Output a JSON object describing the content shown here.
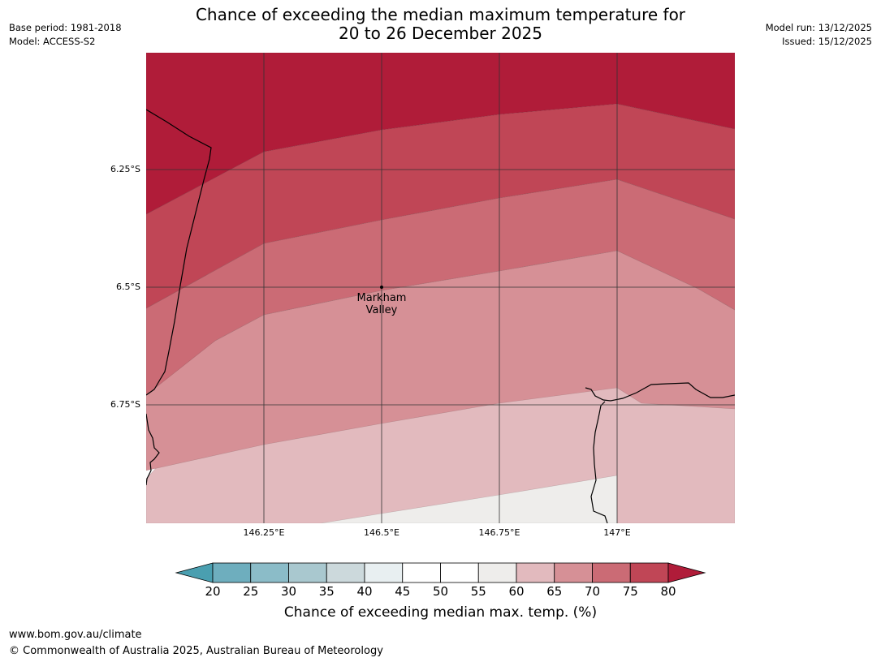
{
  "header": {
    "title_line1": "Chance of exceeding the median maximum temperature for",
    "title_line2": "20 to 26 December 2025",
    "base_period": "Base period: 1981-2018",
    "model": "Model: ACCESS-S2",
    "model_run": "Model run: 13/12/2025",
    "issued": "Issued: 15/12/2025"
  },
  "map": {
    "lat_labels": [
      "6.25°S",
      "6.5°S",
      "6.75°S"
    ],
    "lon_labels": [
      "146.25°E",
      "146.5°E",
      "146.75°E",
      "147°E"
    ],
    "place": {
      "name_line1": "Markham",
      "name_line2": "Valley"
    },
    "band_colors": [
      "#b01c39",
      "#c04656",
      "#cb6b75",
      "#d69096",
      "#e2babe",
      "#eeedeb",
      "#ffffff"
    ]
  },
  "colorbar": {
    "ticks": [
      "20",
      "25",
      "30",
      "35",
      "40",
      "45",
      "50",
      "55",
      "60",
      "65",
      "70",
      "75",
      "80"
    ],
    "colors": [
      "#4a9fb0",
      "#6eaebe",
      "#8bbcc8",
      "#a9c8cf",
      "#ccd9dc",
      "#e8eff1",
      "#ffffff",
      "#ffffff",
      "#eeedeb",
      "#e2babe",
      "#d69096",
      "#cb6b75",
      "#c04656",
      "#b01c39"
    ],
    "label": "Chance of exceeding median max. temp. (%)"
  },
  "footer": {
    "url": "www.bom.gov.au/climate",
    "copyright": "© Commonwealth of Australia 2025, Australian Bureau of Meteorology"
  }
}
